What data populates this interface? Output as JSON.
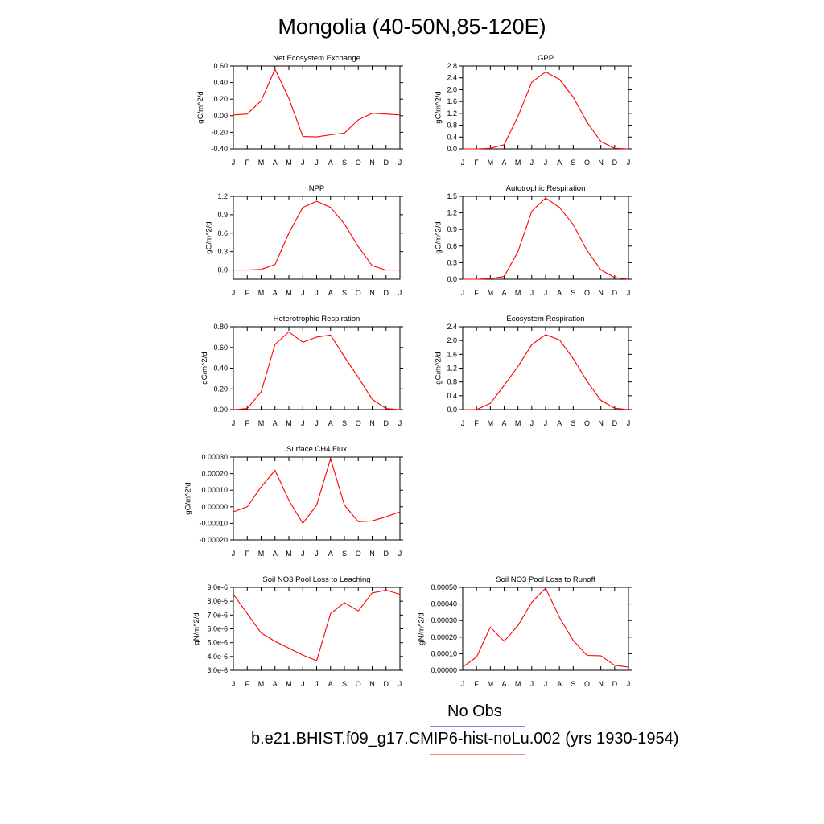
{
  "figure": {
    "title": "Mongolia (40-50N,85-120E)"
  },
  "months": [
    "J",
    "F",
    "M",
    "A",
    "M",
    "J",
    "J",
    "A",
    "S",
    "O",
    "N",
    "D",
    "J"
  ],
  "colors": {
    "model": "#ff0000",
    "obs": "#8080ff"
  },
  "legend": {
    "obs_label": "No Obs",
    "model_label": "b.e21.BHIST.f09_g17.CMIP6-hist-noLu.002 (yrs 1930-1954)"
  },
  "chart_data": [
    {
      "type": "line",
      "title": "Net Ecosystem Exchange",
      "ylabel": "gC/m^2/d",
      "ylim": [
        -0.4,
        0.6
      ],
      "yticks": [
        "-0.40",
        "-0.20",
        "0.00",
        "0.20",
        "0.40",
        "0.60"
      ],
      "series": [
        {
          "values": [
            0.01,
            0.02,
            0.18,
            0.56,
            0.21,
            -0.25,
            -0.255,
            -0.23,
            -0.21,
            -0.05,
            0.03,
            0.02,
            0.01
          ]
        }
      ]
    },
    {
      "type": "line",
      "title": "GPP",
      "ylabel": "gC/m^2/d",
      "ylim": [
        0.0,
        2.8
      ],
      "yticks": [
        "0.0",
        "0.4",
        "0.8",
        "1.2",
        "1.6",
        "2.0",
        "2.4",
        "2.8"
      ],
      "series": [
        {
          "values": [
            0.0,
            0.0,
            0.02,
            0.14,
            1.1,
            2.25,
            2.6,
            2.35,
            1.75,
            0.9,
            0.25,
            0.02,
            0.0
          ]
        }
      ]
    },
    {
      "type": "line",
      "title": "NPP",
      "ylabel": "gC/m^2/d",
      "ylim": [
        -0.15,
        1.2
      ],
      "yticks": [
        "0.0",
        "0.3",
        "0.6",
        "0.9",
        "1.2"
      ],
      "series": [
        {
          "values": [
            0.0,
            0.0,
            0.01,
            0.09,
            0.6,
            1.02,
            1.12,
            1.02,
            0.75,
            0.38,
            0.07,
            0.0,
            0.0
          ]
        }
      ]
    },
    {
      "type": "line",
      "title": "Autotrophic Respiration",
      "ylabel": "gC/m^2/d",
      "ylim": [
        0.0,
        1.5
      ],
      "yticks": [
        "0.0",
        "0.3",
        "0.6",
        "0.9",
        "1.2",
        "1.5"
      ],
      "series": [
        {
          "values": [
            0.0,
            0.0,
            0.01,
            0.05,
            0.5,
            1.23,
            1.47,
            1.3,
            0.99,
            0.52,
            0.17,
            0.03,
            0.0
          ]
        }
      ]
    },
    {
      "type": "line",
      "title": "Heterotrophic Respiration",
      "ylabel": "gC/m^2/d",
      "ylim": [
        0.0,
        0.8
      ],
      "yticks": [
        "0.00",
        "0.20",
        "0.40",
        "0.60",
        "0.80"
      ],
      "series": [
        {
          "values": [
            0.0,
            0.01,
            0.17,
            0.63,
            0.75,
            0.65,
            0.7,
            0.72,
            0.51,
            0.31,
            0.1,
            0.01,
            0.0
          ]
        }
      ]
    },
    {
      "type": "line",
      "title": "Ecosystem Respiration",
      "ylabel": "gC/m^2/d",
      "ylim": [
        0.0,
        2.4
      ],
      "yticks": [
        "0.0",
        "0.4",
        "0.8",
        "1.2",
        "1.6",
        "2.0",
        "2.4"
      ],
      "series": [
        {
          "values": [
            0.0,
            0.0,
            0.18,
            0.7,
            1.25,
            1.88,
            2.17,
            2.02,
            1.48,
            0.82,
            0.27,
            0.04,
            0.0
          ]
        }
      ]
    },
    {
      "type": "line",
      "title": "Surface CH4 Flux",
      "ylabel": "gC/m^2/d",
      "ylim": [
        -0.0002,
        0.0003
      ],
      "yticks": [
        "-0.00020",
        "-0.00010",
        "0.00000",
        "0.00010",
        "0.00020",
        "0.00030"
      ],
      "series": [
        {
          "values": [
            -3e-05,
            0.0,
            0.00012,
            0.00022,
            4e-05,
            -0.0001,
            1e-05,
            0.00029,
            1e-05,
            -9e-05,
            -8.5e-05,
            -6e-05,
            -3e-05
          ]
        }
      ]
    },
    {
      "type": "line",
      "title": "Soil NO3 Pool Loss to Leaching",
      "ylabel": "gN/m^2/d",
      "ylim": [
        3e-06,
        9e-06
      ],
      "yticks": [
        "3.0e-6",
        "4.0e-6",
        "5.0e-6",
        "6.0e-6",
        "7.0e-6",
        "8.0e-6",
        "9.0e-6"
      ],
      "series": [
        {
          "values": [
            8.5e-06,
            7.1e-06,
            5.7e-06,
            5.1e-06,
            4.6e-06,
            4.1e-06,
            3.7e-06,
            7.1e-06,
            7.9e-06,
            7.3e-06,
            8.6e-06,
            8.8e-06,
            8.5e-06
          ]
        }
      ]
    },
    {
      "type": "line",
      "title": "Soil NO3 Pool Loss to Runoff",
      "ylabel": "gN/m^2/d",
      "ylim": [
        0.0,
        0.0005
      ],
      "yticks": [
        "0.00000",
        "0.00010",
        "0.00020",
        "0.00030",
        "0.00040",
        "0.00050"
      ],
      "series": [
        {
          "values": [
            2e-05,
            8e-05,
            0.00026,
            0.000175,
            0.00027,
            0.00041,
            0.000495,
            0.00032,
            0.00018,
            9e-05,
            8.8e-05,
            3e-05,
            2e-05
          ]
        }
      ]
    }
  ]
}
